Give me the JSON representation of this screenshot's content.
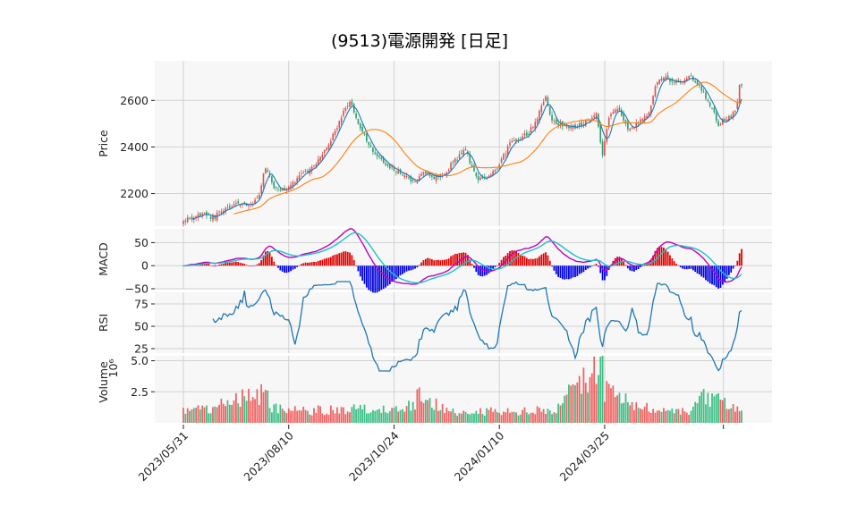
{
  "title": "(9513)電源開発 [日足]",
  "colors": {
    "up": "#d9534f",
    "down": "#2e9e6e",
    "ma_short": "#1f77b4",
    "ma_long": "#ff7f0e",
    "macd": "#c000c0",
    "signal": "#1fc0c8",
    "hist_pos": "#e00000",
    "hist_neg": "#0000e0",
    "rsi": "#1f77b4",
    "vol_up": "#f06262",
    "vol_down": "#3cbf84"
  },
  "chart_data": {
    "type": "candlestick",
    "x_tick_labels": [
      "2023/05/31",
      "2023/08/10",
      "2023/10/24",
      "2024/01/10",
      "2024/03/25"
    ],
    "panels": [
      {
        "id": "price",
        "ylabel": "Price",
        "yticks": [
          2200,
          2400,
          2600
        ],
        "ylim": [
          2060,
          2770
        ]
      },
      {
        "id": "macd",
        "ylabel": "MACD",
        "yticks": [
          50,
          0,
          -50
        ],
        "ylim": [
          -52,
          80
        ]
      },
      {
        "id": "rsi",
        "ylabel": "RSI",
        "yticks": [
          75,
          50,
          25
        ],
        "ylim": [
          20,
          88
        ]
      },
      {
        "id": "volume",
        "ylabel": "Volume",
        "unit": "10^6",
        "yticks": [
          5.0,
          2.5
        ],
        "ylim": [
          0,
          5.4
        ]
      }
    ],
    "close_anchors": [
      [
        0,
        2085
      ],
      [
        5,
        2095
      ],
      [
        10,
        2115
      ],
      [
        14,
        2095
      ],
      [
        20,
        2140
      ],
      [
        26,
        2165
      ],
      [
        32,
        2150
      ],
      [
        36,
        2200
      ],
      [
        39,
        2315
      ],
      [
        43,
        2230
      ],
      [
        49,
        2215
      ],
      [
        55,
        2275
      ],
      [
        61,
        2310
      ],
      [
        66,
        2360
      ],
      [
        70,
        2430
      ],
      [
        75,
        2530
      ],
      [
        79,
        2590
      ],
      [
        84,
        2490
      ],
      [
        89,
        2395
      ],
      [
        94,
        2350
      ],
      [
        99,
        2310
      ],
      [
        105,
        2275
      ],
      [
        110,
        2245
      ],
      [
        114,
        2300
      ],
      [
        119,
        2265
      ],
      [
        124,
        2290
      ],
      [
        129,
        2345
      ],
      [
        134,
        2385
      ],
      [
        139,
        2265
      ],
      [
        144,
        2260
      ],
      [
        149,
        2315
      ],
      [
        155,
        2410
      ],
      [
        160,
        2435
      ],
      [
        164,
        2460
      ],
      [
        168,
        2520
      ],
      [
        172,
        2615
      ],
      [
        175,
        2510
      ],
      [
        180,
        2495
      ],
      [
        186,
        2490
      ],
      [
        191,
        2505
      ],
      [
        196,
        2540
      ],
      [
        199,
        2360
      ],
      [
        202,
        2535
      ],
      [
        206,
        2565
      ],
      [
        211,
        2475
      ],
      [
        216,
        2500
      ],
      [
        221,
        2545
      ],
      [
        224,
        2660
      ],
      [
        228,
        2705
      ],
      [
        234,
        2675
      ],
      [
        240,
        2705
      ],
      [
        245,
        2665
      ],
      [
        250,
        2585
      ],
      [
        254,
        2500
      ],
      [
        258,
        2525
      ],
      [
        262,
        2545
      ],
      [
        264,
        2660
      ]
    ],
    "volume_anchors": [
      [
        0,
        0.9
      ],
      [
        12,
        1.1
      ],
      [
        24,
        1.8
      ],
      [
        40,
        2.6
      ],
      [
        42,
        1.2
      ],
      [
        60,
        1.0
      ],
      [
        80,
        1.1
      ],
      [
        100,
        1.0
      ],
      [
        110,
        1.6
      ],
      [
        111,
        2.7
      ],
      [
        125,
        0.9
      ],
      [
        150,
        0.9
      ],
      [
        176,
        1.0
      ],
      [
        199,
        5.4
      ],
      [
        200,
        2.5
      ],
      [
        225,
        1.0
      ],
      [
        240,
        0.9
      ],
      [
        248,
        2.1
      ],
      [
        265,
        1.1
      ]
    ]
  }
}
